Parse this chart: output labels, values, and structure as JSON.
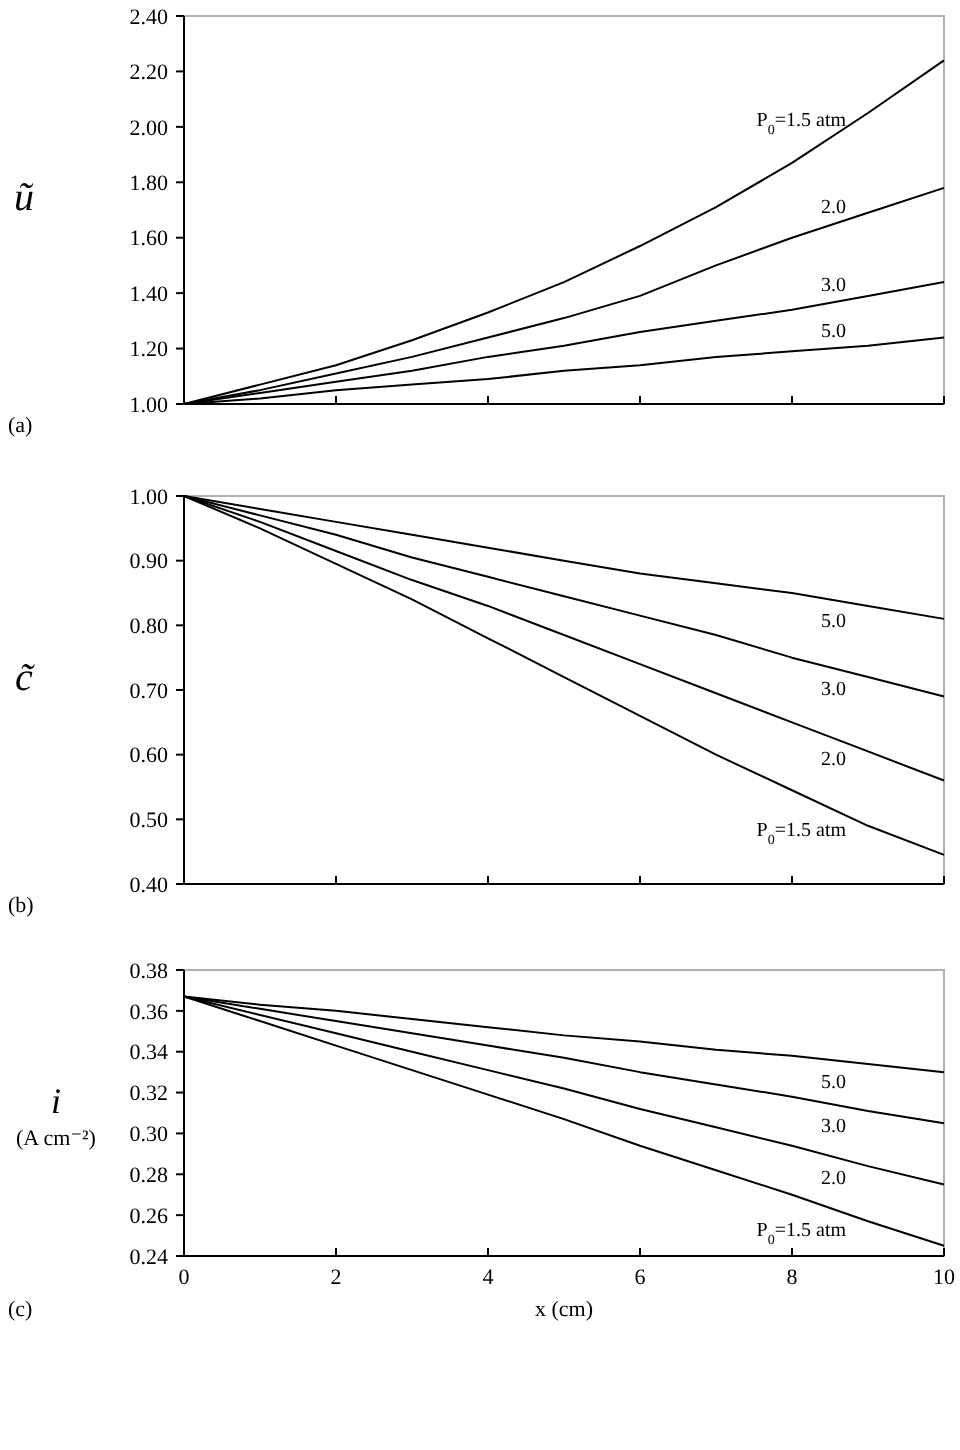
{
  "chart_data": [
    {
      "type": "line",
      "ylabel": "ũ",
      "annotations": [
        "(a)"
      ],
      "x": [
        0,
        1,
        2,
        3,
        4,
        5,
        6,
        7,
        8,
        9,
        10
      ],
      "xlim": [
        0,
        10
      ],
      "xticks": [
        {
          "value": 0,
          "label": null
        },
        {
          "value": 2,
          "label": null
        },
        {
          "value": 4,
          "label": null
        },
        {
          "value": 6,
          "label": null
        },
        {
          "value": 8,
          "label": null
        },
        {
          "value": 10,
          "label": null
        }
      ],
      "ylim": [
        1.0,
        2.4
      ],
      "yticks": [
        {
          "value": 1.0,
          "label": "1.00"
        },
        {
          "value": 1.2,
          "label": "1.20"
        },
        {
          "value": 1.4,
          "label": "1.40"
        },
        {
          "value": 1.6,
          "label": "1.60"
        },
        {
          "value": 1.8,
          "label": "1.80"
        },
        {
          "value": 2.0,
          "label": "2.00"
        },
        {
          "value": 2.2,
          "label": "2.20"
        },
        {
          "value": 2.4,
          "label": "2.40"
        }
      ],
      "tick_labels": "y",
      "grid": false,
      "marker": "none",
      "line_style": "solid",
      "series": [
        {
          "name": "P$_{0}$=1.5 atm",
          "color": "#000000",
          "values": [
            1.0,
            1.07,
            1.14,
            1.23,
            1.33,
            1.44,
            1.57,
            1.71,
            1.87,
            2.05,
            2.24
          ]
        },
        {
          "name": "2.0",
          "color": "#000000",
          "values": [
            1.0,
            1.05,
            1.11,
            1.17,
            1.24,
            1.31,
            1.39,
            1.5,
            1.6,
            1.69,
            1.78
          ]
        },
        {
          "name": "3.0",
          "color": "#000000",
          "values": [
            1.0,
            1.04,
            1.08,
            1.12,
            1.17,
            1.21,
            1.26,
            1.3,
            1.34,
            1.39,
            1.44
          ]
        },
        {
          "name": "5.0",
          "color": "#000000",
          "values": [
            1.0,
            1.02,
            1.05,
            1.07,
            1.09,
            1.12,
            1.14,
            1.17,
            1.19,
            1.21,
            1.24
          ]
        }
      ]
    },
    {
      "type": "line",
      "ylabel": "c̃",
      "annotations": [
        "(b)"
      ],
      "x": [
        0,
        1,
        2,
        3,
        4,
        5,
        6,
        7,
        8,
        9,
        10
      ],
      "xlim": [
        0,
        10
      ],
      "xticks": [
        {
          "value": 0,
          "label": null
        },
        {
          "value": 2,
          "label": null
        },
        {
          "value": 4,
          "label": null
        },
        {
          "value": 6,
          "label": null
        },
        {
          "value": 8,
          "label": null
        },
        {
          "value": 10,
          "label": null
        }
      ],
      "ylim": [
        0.4,
        1.0
      ],
      "yticks": [
        {
          "value": 0.4,
          "label": "0.40"
        },
        {
          "value": 0.5,
          "label": "0.50"
        },
        {
          "value": 0.6,
          "label": "0.60"
        },
        {
          "value": 0.7,
          "label": "0.70"
        },
        {
          "value": 0.8,
          "label": "0.80"
        },
        {
          "value": 0.9,
          "label": "0.90"
        },
        {
          "value": 1.0,
          "label": "1.00"
        }
      ],
      "tick_labels": "y",
      "grid": false,
      "marker": "none",
      "line_style": "solid",
      "series": [
        {
          "name": "5.0",
          "color": "#000000",
          "values": [
            1.0,
            0.98,
            0.96,
            0.94,
            0.92,
            0.9,
            0.88,
            0.865,
            0.85,
            0.83,
            0.81
          ]
        },
        {
          "name": "3.0",
          "color": "#000000",
          "values": [
            1.0,
            0.97,
            0.94,
            0.905,
            0.875,
            0.845,
            0.815,
            0.785,
            0.75,
            0.72,
            0.69
          ]
        },
        {
          "name": "2.0",
          "color": "#000000",
          "values": [
            1.0,
            0.96,
            0.915,
            0.87,
            0.83,
            0.785,
            0.74,
            0.695,
            0.65,
            0.605,
            0.56
          ]
        },
        {
          "name": "P$_{0}$=1.5 atm",
          "color": "#000000",
          "values": [
            1.0,
            0.95,
            0.895,
            0.84,
            0.78,
            0.72,
            0.66,
            0.6,
            0.545,
            0.49,
            0.445
          ]
        }
      ]
    },
    {
      "type": "line",
      "xlabel": "x (cm)",
      "ylabel": "i (A cm⁻²)",
      "annotations": [
        "(c)"
      ],
      "x": [
        0,
        1,
        2,
        3,
        4,
        5,
        6,
        7,
        8,
        9,
        10
      ],
      "xlim": [
        0,
        10
      ],
      "xticks": [
        0,
        2,
        4,
        6,
        8,
        10
      ],
      "ylim": [
        0.24,
        0.38
      ],
      "yticks": [
        {
          "value": 0.24,
          "label": "0.24"
        },
        {
          "value": 0.26,
          "label": "0.26"
        },
        {
          "value": 0.28,
          "label": "0.28"
        },
        {
          "value": 0.3,
          "label": "0.30"
        },
        {
          "value": 0.32,
          "label": "0.32"
        },
        {
          "value": 0.34,
          "label": "0.34"
        },
        {
          "value": 0.36,
          "label": "0.36"
        },
        {
          "value": 0.38,
          "label": "0.38"
        }
      ],
      "grid": false,
      "marker": "none",
      "line_style": "solid",
      "series": [
        {
          "name": "5.0",
          "color": "#000000",
          "values": [
            0.367,
            0.363,
            0.36,
            0.356,
            0.352,
            0.348,
            0.345,
            0.341,
            0.338,
            0.334,
            0.33
          ]
        },
        {
          "name": "3.0",
          "color": "#000000",
          "values": [
            0.367,
            0.361,
            0.355,
            0.349,
            0.343,
            0.337,
            0.33,
            0.324,
            0.318,
            0.311,
            0.305
          ]
        },
        {
          "name": "2.0",
          "color": "#000000",
          "values": [
            0.367,
            0.358,
            0.349,
            0.34,
            0.331,
            0.322,
            0.312,
            0.303,
            0.294,
            0.284,
            0.275
          ]
        },
        {
          "name": "P$_{0}$=1.5 atm",
          "color": "#000000",
          "values": [
            0.367,
            0.355,
            0.343,
            0.331,
            0.319,
            0.307,
            0.294,
            0.282,
            0.27,
            0.257,
            0.245
          ]
        }
      ]
    }
  ]
}
